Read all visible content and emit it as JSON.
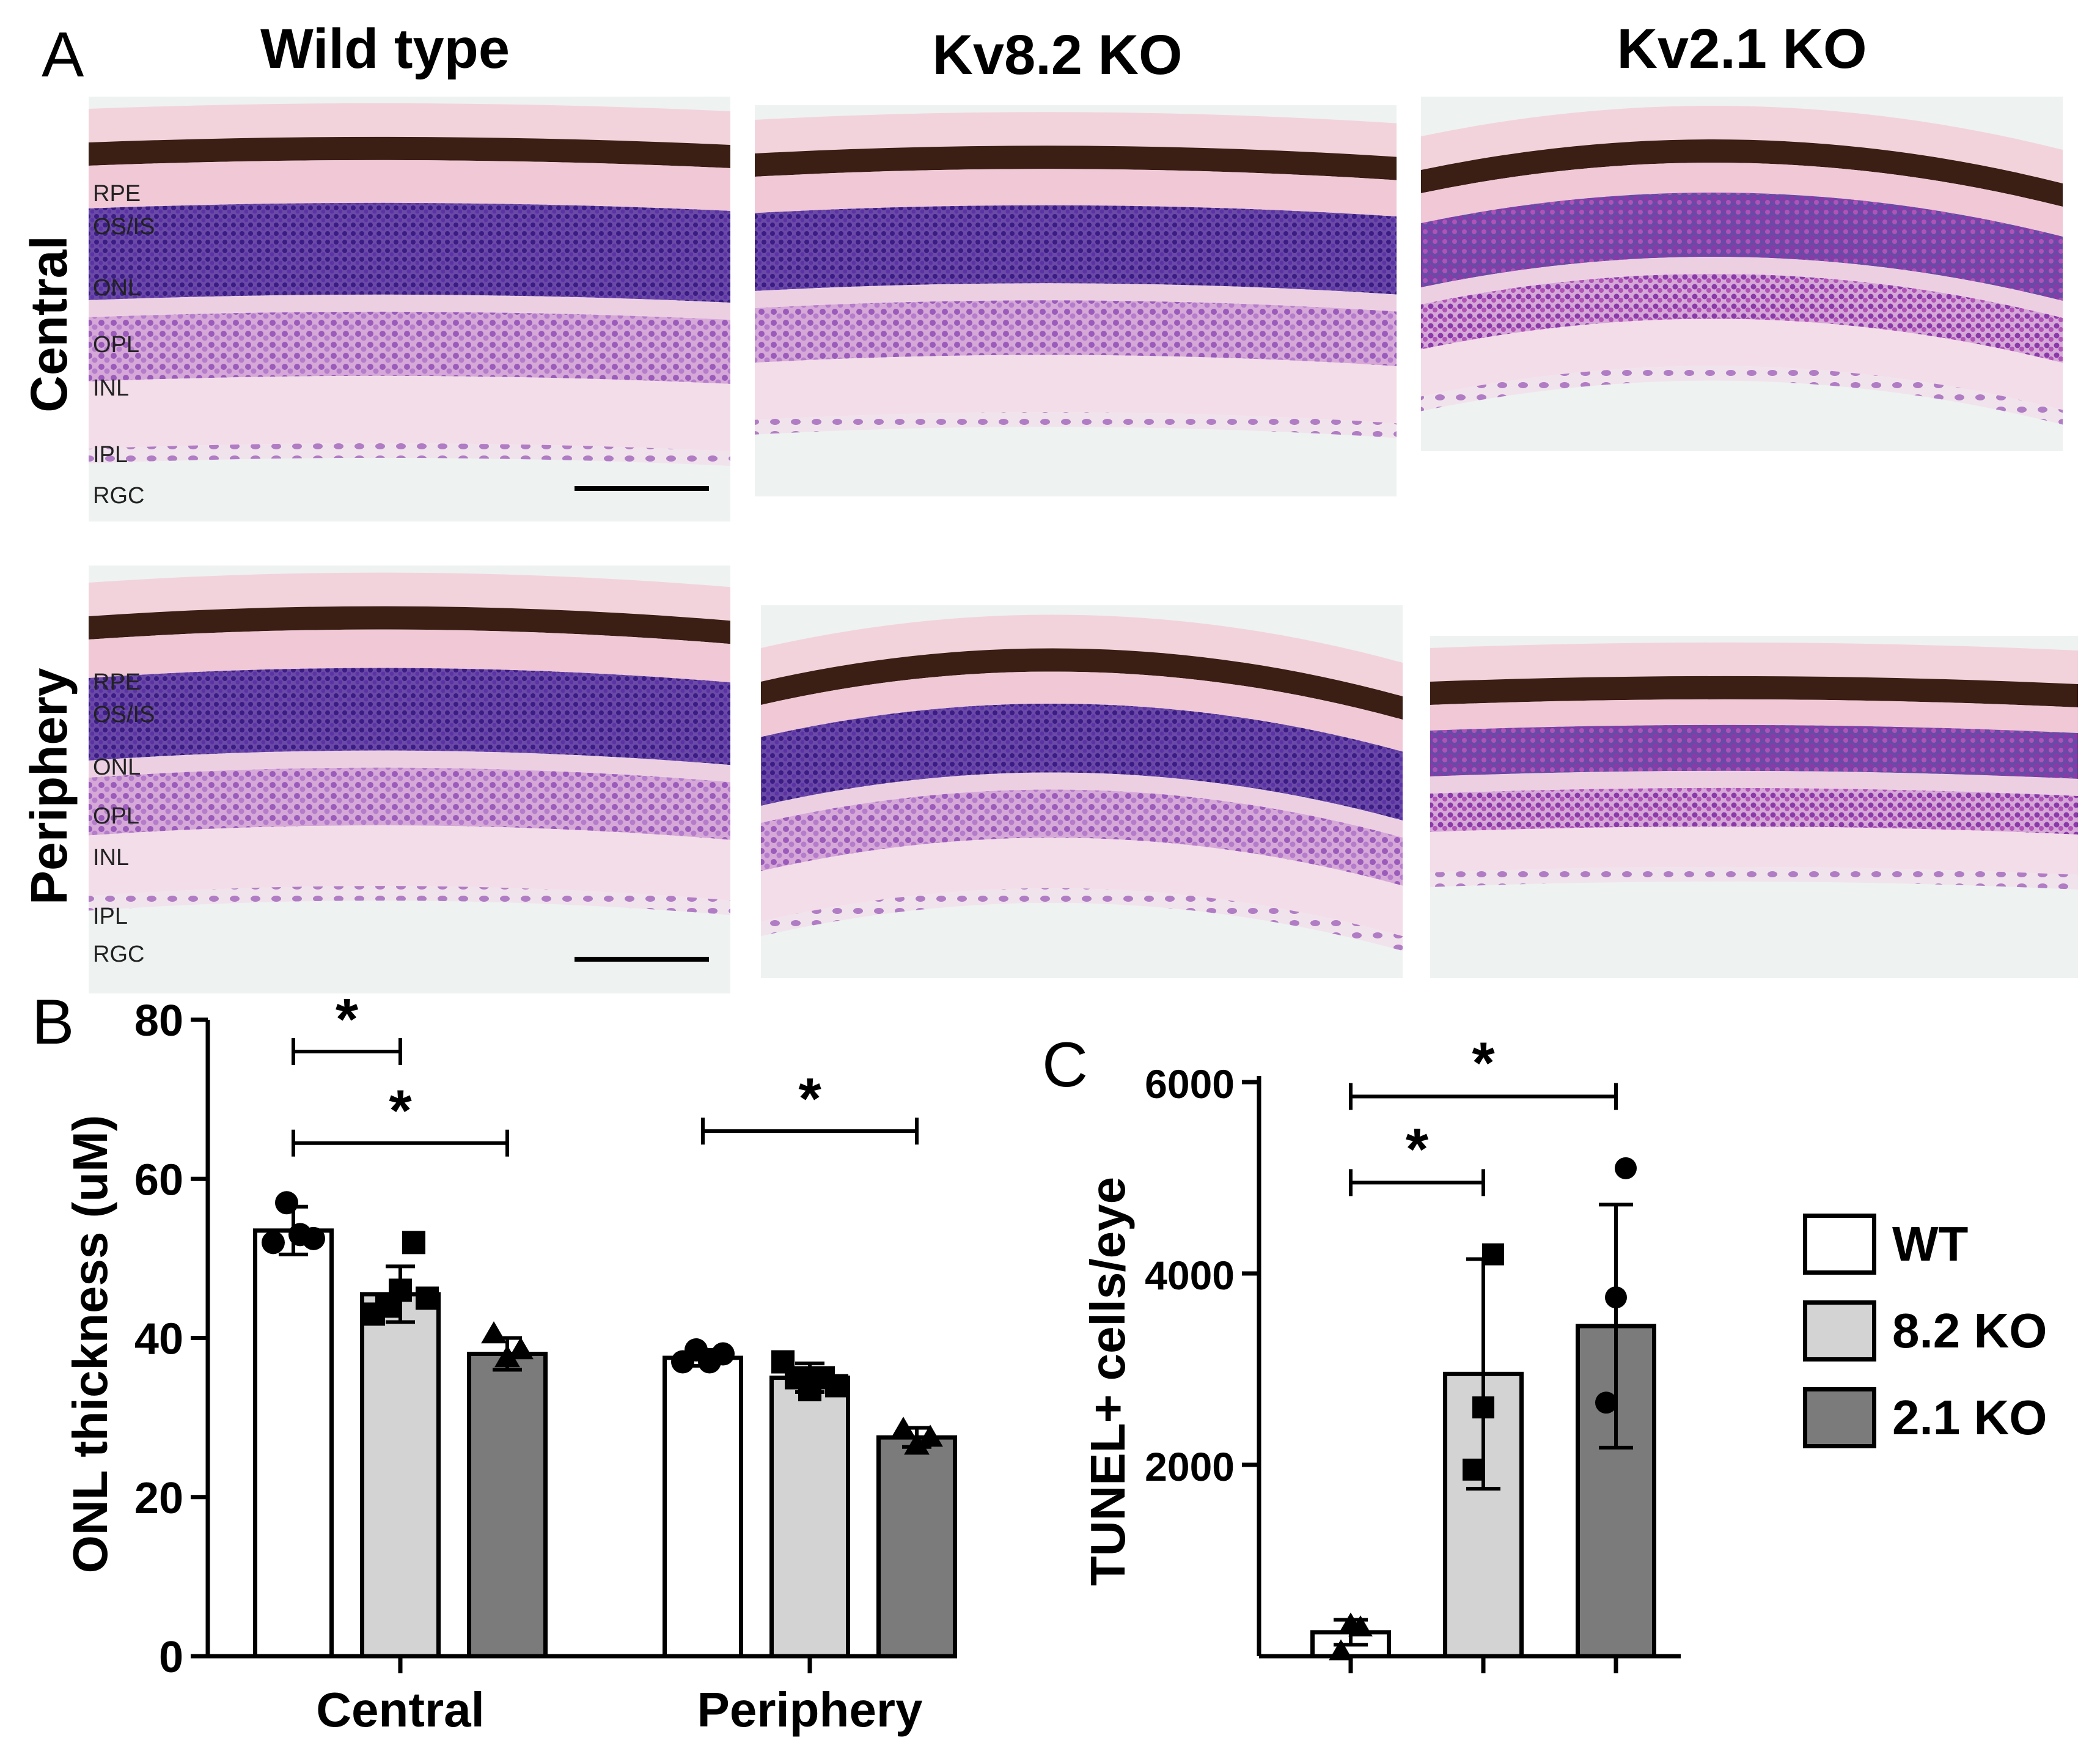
{
  "panel_a": {
    "letter": "A",
    "columns": [
      "Wild type",
      "Kv8.2 KO",
      "Kv2.1 KO"
    ],
    "rows": [
      "Central",
      "Periphery"
    ],
    "layer_labels": [
      "RPE",
      "OS/IS",
      "ONL",
      "OPL",
      "INL",
      "IPL",
      "RGC"
    ],
    "stain_colors": {
      "sclera": "#f2d3dc",
      "rpe": "#3b1e14",
      "segments": "#f0c8d6",
      "onl": "#4a2790",
      "opl": "#ecd0e2",
      "inl": "#a165be",
      "ipl": "#f3dde8",
      "rgc": "#b881c4",
      "vitreous": "#eef2f1"
    }
  },
  "panel_b": {
    "letter": "B",
    "significance_marker": "*",
    "chart_data": {
      "type": "bar",
      "categories": [
        "Central",
        "Periphery"
      ],
      "ylabel": "ONL thickness (uM)",
      "xlabel": "",
      "ylim": [
        0,
        80
      ],
      "yticks": [
        0,
        20,
        40,
        60,
        80
      ],
      "series": [
        {
          "name": "WT",
          "color": "#ffffff",
          "marker": "circle",
          "values": [
            53.5,
            37.5
          ],
          "errors": [
            3.0,
            1.0
          ],
          "points": [
            [
              52,
              57,
              53,
              52.5
            ],
            [
              37,
              38.5,
              37,
              38
            ]
          ]
        },
        {
          "name": "8.2 KO",
          "color": "#d3d3d3",
          "marker": "square",
          "values": [
            45.5,
            35
          ],
          "errors": [
            3.5,
            1.8
          ],
          "points": [
            [
              43,
              44,
              46,
              52,
              45
            ],
            [
              37,
              35,
              33.5,
              35,
              34
            ]
          ]
        },
        {
          "name": "2.1 KO",
          "color": "#7b7b7b",
          "marker": "triangle",
          "values": [
            38,
            27.5
          ],
          "errors": [
            2.0,
            1.2
          ],
          "points": [
            [
              40.5,
              37.5,
              38.5
            ],
            [
              28.5,
              26.5,
              27.5
            ]
          ]
        }
      ],
      "significance": [
        {
          "category": 0,
          "from": 0,
          "to": 1,
          "y": 76,
          "label": "*"
        },
        {
          "category": 0,
          "from": 0,
          "to": 2,
          "y": 64.5,
          "label": "*"
        },
        {
          "category": 1,
          "from": 0,
          "to": 2,
          "y": 66,
          "label": "*"
        }
      ]
    }
  },
  "panel_c": {
    "letter": "C",
    "significance_marker": "*",
    "chart_data": {
      "type": "bar",
      "categories": [
        "WT",
        "8.2 KO",
        "2.1 KO"
      ],
      "ylabel": "TUNEL+ cells/eye",
      "xlabel": "",
      "ylim": [
        0,
        6000
      ],
      "yticks": [
        2000,
        4000,
        6000
      ],
      "series": [
        {
          "name": "TUNEL+ cells/eye",
          "values": [
            250,
            2950,
            3450
          ],
          "errors": [
            130,
            1200,
            1270
          ],
          "colors": [
            "#ffffff",
            "#d3d3d3",
            "#7b7b7b"
          ],
          "markers": [
            "triangle",
            "square",
            "circle"
          ],
          "points": [
            [
              50,
              330,
              300
            ],
            [
              1950,
              2600,
              4200
            ],
            [
              2650,
              3750,
              5100
            ]
          ]
        }
      ],
      "significance": [
        {
          "from": 0,
          "to": 1,
          "y": 4950,
          "label": "*"
        },
        {
          "from": 0,
          "to": 2,
          "y": 5850,
          "label": "*"
        }
      ]
    }
  },
  "legend": {
    "items": [
      {
        "label": "WT",
        "color": "#ffffff"
      },
      {
        "label": "8.2 KO",
        "color": "#d3d3d3"
      },
      {
        "label": "2.1 KO",
        "color": "#7b7b7b"
      }
    ]
  }
}
